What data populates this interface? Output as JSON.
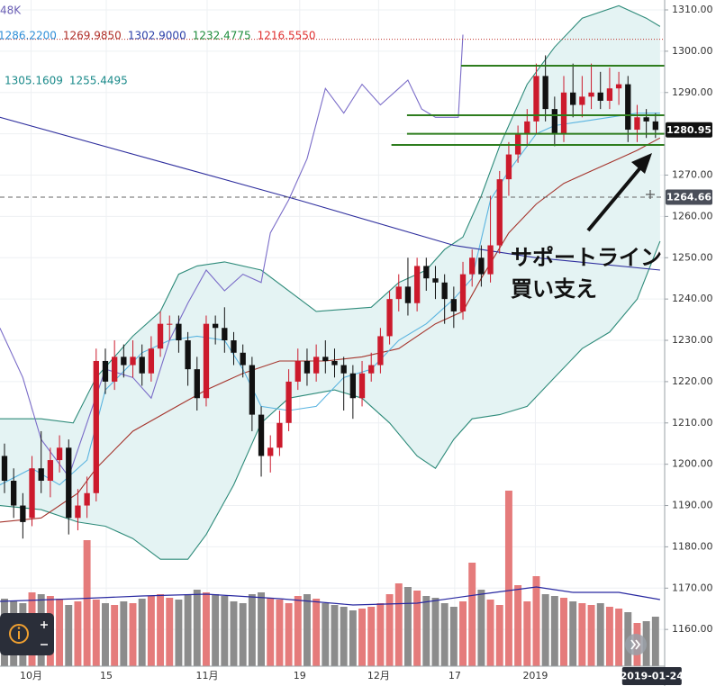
{
  "chart_data": {
    "type": "candlestick",
    "legend_rows": [
      [
        {
          "text": "48K",
          "color": "#6b5fb5"
        }
      ],
      [
        {
          "text": "1286.2200",
          "color": "#2f8fd8"
        },
        {
          "text": "1269.9850",
          "color": "#b0302a"
        },
        {
          "text": "1302.9000",
          "color": "#2a3fa8"
        },
        {
          "text": "1232.4775",
          "color": "#1e8c3c"
        },
        {
          "text": "1216.5550",
          "color": "#e03030"
        }
      ],
      [
        {
          "text": "1305.1609",
          "color": "#1a8a8a"
        },
        {
          "text": "1255.4495",
          "color": "#1a8a8a"
        }
      ]
    ],
    "annotations": [
      "サポートライン",
      "買い支え"
    ],
    "xlim": [
      -0.49,
      72.0
    ],
    "ylim": [
      1151.1,
      1312.4
    ],
    "yticks": [
      {
        "value": 1160,
        "label": "1160.00"
      },
      {
        "value": 1170,
        "label": "1170.00"
      },
      {
        "value": 1180,
        "label": "1180.00"
      },
      {
        "value": 1190,
        "label": "1190.00"
      },
      {
        "value": 1200,
        "label": "1200.00"
      },
      {
        "value": 1210,
        "label": "1210.00"
      },
      {
        "value": 1220,
        "label": "1220.00"
      },
      {
        "value": 1230,
        "label": "1230.00"
      },
      {
        "value": 1240,
        "label": "1240.00"
      },
      {
        "value": 1250,
        "label": "1250.00"
      },
      {
        "value": 1260,
        "label": "1260.00"
      },
      {
        "value": 1270,
        "label": "1270.00"
      },
      {
        "value": 1280,
        "label": "1280.00"
      },
      {
        "value": 1290,
        "label": "1290.00"
      },
      {
        "value": 1300,
        "label": "1300.00"
      },
      {
        "value": 1310,
        "label": "1310.00"
      }
    ],
    "xticks": [
      {
        "value": 2.9,
        "label": "10月"
      },
      {
        "value": 11.1,
        "label": "15"
      },
      {
        "value": 22.1,
        "label": "11月"
      },
      {
        "value": 32.2,
        "label": "19"
      },
      {
        "value": 40.8,
        "label": "12月"
      },
      {
        "value": 49.1,
        "label": "17"
      },
      {
        "value": 57.9,
        "label": "2019"
      }
    ],
    "grid": true,
    "date_label": {
      "value": 71,
      "label": "2019-01-24"
    },
    "price_labels": [
      {
        "value": 1280.95,
        "label": "1280.95",
        "color": "#111111"
      },
      {
        "value": 1264.66,
        "label": "1264.66",
        "color": "#4a4e59"
      }
    ],
    "up_color": "#cc1a2c",
    "down_color": "#111111",
    "open": [
      1202,
      1196,
      1190,
      1187,
      1199,
      1196,
      1201,
      1204,
      1187,
      1190,
      1193,
      1225,
      1220,
      1226,
      1224,
      1226,
      1222,
      1228,
      1234,
      1234,
      1230,
      1223,
      1216,
      1234,
      1233,
      1230,
      1227,
      1224,
      1212,
      1202,
      1204,
      1210,
      1220,
      1225,
      1222,
      1226,
      1225,
      1224,
      1222,
      1216,
      1222,
      1224,
      1231,
      1240,
      1243,
      1239,
      1248,
      1245,
      1244,
      1240,
      1237,
      1246,
      1250,
      1246,
      1253,
      1269,
      1275,
      1280,
      1283,
      1294,
      1286,
      1280,
      1290,
      1287,
      1289,
      1290,
      1288,
      1291,
      1292,
      1281,
      1284,
      1283
    ],
    "high": [
      1205,
      1199,
      1193,
      1202,
      1208,
      1204,
      1207,
      1206,
      1194,
      1197,
      1228,
      1228,
      1230,
      1229,
      1230,
      1229,
      1231,
      1237,
      1236,
      1236,
      1232,
      1226,
      1236,
      1236,
      1238,
      1232,
      1229,
      1226,
      1214,
      1207,
      1213,
      1223,
      1228,
      1228,
      1229,
      1230,
      1228,
      1226,
      1224,
      1225,
      1227,
      1233,
      1242,
      1246,
      1250,
      1250,
      1250,
      1248,
      1246,
      1243,
      1249,
      1252,
      1253,
      1265,
      1271,
      1278,
      1282,
      1286,
      1297,
      1299,
      1289,
      1294,
      1297,
      1294,
      1297,
      1295,
      1296,
      1295,
      1294,
      1287,
      1286,
      1285
    ],
    "low": [
      1193,
      1187,
      1182,
      1185,
      1193,
      1192,
      1198,
      1183,
      1184,
      1187,
      1191,
      1217,
      1218,
      1221,
      1221,
      1219,
      1220,
      1226,
      1230,
      1227,
      1219,
      1213,
      1214,
      1229,
      1227,
      1224,
      1221,
      1208,
      1197,
      1198,
      1202,
      1208,
      1218,
      1219,
      1220,
      1222,
      1221,
      1213,
      1211,
      1214,
      1220,
      1222,
      1229,
      1237,
      1236,
      1237,
      1242,
      1240,
      1234,
      1233,
      1235,
      1243,
      1243,
      1244,
      1251,
      1265,
      1273,
      1277,
      1280,
      1283,
      1277,
      1278,
      1284,
      1284,
      1286,
      1286,
      1286,
      1287,
      1278,
      1278,
      1279,
      1279
    ],
    "close": [
      1196,
      1190,
      1186,
      1199,
      1196,
      1201,
      1204,
      1187,
      1190,
      1193,
      1225,
      1220,
      1226,
      1224,
      1226,
      1222,
      1228,
      1234,
      1234,
      1230,
      1223,
      1216,
      1234,
      1233,
      1230,
      1227,
      1224,
      1212,
      1202,
      1204,
      1210,
      1220,
      1225,
      1222,
      1226,
      1225,
      1224,
      1222,
      1216,
      1222,
      1224,
      1231,
      1240,
      1243,
      1239,
      1248,
      1245,
      1244,
      1240,
      1237,
      1246,
      1250,
      1246,
      1253,
      1269,
      1275,
      1280,
      1283,
      1294,
      1286,
      1280,
      1290,
      1287,
      1289,
      1290,
      1288,
      1291,
      1292,
      1281,
      1284,
      1283,
      1280.95
    ],
    "volume": [
      75,
      72,
      70,
      82,
      80,
      78,
      75,
      68,
      72,
      140,
      74,
      70,
      68,
      72,
      70,
      75,
      78,
      80,
      76,
      74,
      80,
      85,
      82,
      80,
      78,
      72,
      70,
      80,
      82,
      76,
      74,
      70,
      78,
      80,
      75,
      70,
      68,
      66,
      62,
      64,
      66,
      70,
      80,
      92,
      88,
      84,
      78,
      76,
      70,
      66,
      72,
      115,
      85,
      74,
      68,
      195,
      90,
      72,
      100,
      80,
      78,
      76,
      72,
      70,
      68,
      70,
      66,
      64,
      60,
      48,
      50,
      55
    ],
    "volume_ylim": [
      0,
      740
    ],
    "volume_up_color": "#e57b7b",
    "volume_down_color": "#8c8c8c",
    "band": {
      "fill": "#e4f3f3",
      "upper": {
        "color": "#2e8b7a",
        "x": [
          -0.5,
          4,
          7.5,
          10,
          14,
          17,
          19,
          21,
          24,
          28,
          34,
          40,
          43,
          46,
          48,
          50,
          52,
          54,
          57,
          60,
          63,
          67,
          70,
          71.5
        ],
        "values": [
          1211,
          1211,
          1210,
          1221,
          1231,
          1237,
          1246,
          1248,
          1249,
          1247,
          1237,
          1238,
          1244,
          1247,
          1252,
          1255,
          1265,
          1277,
          1292,
          1301,
          1308,
          1311,
          1308,
          1306
        ]
      },
      "lower": {
        "color": "#2e8b7a",
        "x": [
          -0.5,
          4,
          8,
          11,
          14,
          17,
          20,
          22,
          25,
          28,
          31,
          36,
          39,
          42,
          45,
          47,
          49,
          51,
          54,
          57,
          60,
          63,
          66,
          69,
          71.5
        ],
        "values": [
          1190,
          1189,
          1186,
          1185,
          1182,
          1177,
          1177,
          1183,
          1195,
          1210,
          1216,
          1218,
          1216,
          1210,
          1202,
          1199,
          1206,
          1211,
          1212,
          1214,
          1221,
          1228,
          1232,
          1240,
          1254
        ]
      }
    },
    "lines": [
      {
        "color": "#a5342c",
        "x": [
          -0.5,
          4,
          8,
          10,
          14,
          18,
          22,
          26,
          30,
          35,
          39,
          43,
          47,
          50,
          52,
          55,
          58,
          61,
          64,
          67,
          69,
          71.5
        ],
        "values": [
          1186,
          1187,
          1193,
          1199,
          1208,
          1213,
          1218,
          1222,
          1225,
          1225,
          1226,
          1228,
          1234,
          1237,
          1245,
          1256,
          1263,
          1268,
          1271,
          1274,
          1276,
          1279
        ]
      },
      {
        "color": "#5ab4e0",
        "x": [
          -0.5,
          3,
          6,
          9,
          11,
          15,
          18,
          21,
          24,
          26,
          28,
          31,
          34,
          37,
          40,
          43,
          46,
          49,
          51,
          53,
          55,
          58,
          60,
          63,
          66,
          69,
          71.5
        ],
        "values": [
          1195,
          1199,
          1195,
          1201,
          1218,
          1227,
          1230,
          1231,
          1230,
          1223,
          1214,
          1213,
          1214,
          1221,
          1223,
          1230,
          1234,
          1240,
          1245,
          1264,
          1271,
          1280,
          1282,
          1283,
          1284,
          1285,
          1285
        ]
      },
      {
        "color": "#7a6cc8",
        "x": [
          -0.5,
          2,
          4,
          7,
          9,
          11,
          14,
          16,
          18,
          20,
          22,
          24,
          26,
          28,
          29,
          31,
          33,
          35,
          37,
          39,
          41,
          43,
          44,
          45.5,
          47,
          49.5,
          50
        ],
        "values": [
          1233,
          1221,
          1206,
          1197,
          1210,
          1223,
          1221,
          1216,
          1230,
          1239,
          1247,
          1242,
          1246,
          1244,
          1256,
          1264,
          1274,
          1291,
          1285,
          1292,
          1287,
          1291,
          1293,
          1286,
          1284,
          1284,
          1304
        ]
      },
      {
        "color": "#2f2f9e",
        "x": [
          -0.5,
          19,
          32,
          49,
          58,
          71.5
        ],
        "values": [
          1284,
          1272,
          1264,
          1253,
          1250,
          1247
        ]
      }
    ],
    "volume_ma": {
      "color": "#2828a0",
      "x": [
        -0.5,
        8,
        15,
        22,
        30,
        38,
        45,
        52,
        58,
        62,
        67,
        71.5
      ],
      "values": [
        72,
        75,
        78,
        80,
        75,
        68,
        70,
        80,
        88,
        82,
        82,
        74
      ]
    },
    "support_lines": [
      {
        "value": 1296.5,
        "x_start": 49.8
      },
      {
        "value": 1284.5,
        "x_start": 43.9
      },
      {
        "value": 1280,
        "x_start": 43.9
      },
      {
        "value": 1277.3,
        "x_start": 42.2
      }
    ],
    "support_color": "#2e7d1e",
    "high_line": {
      "value": 1302.9,
      "color": "#c0302a"
    },
    "crosshair": {
      "value": 1264.66,
      "color": "#666666"
    }
  }
}
